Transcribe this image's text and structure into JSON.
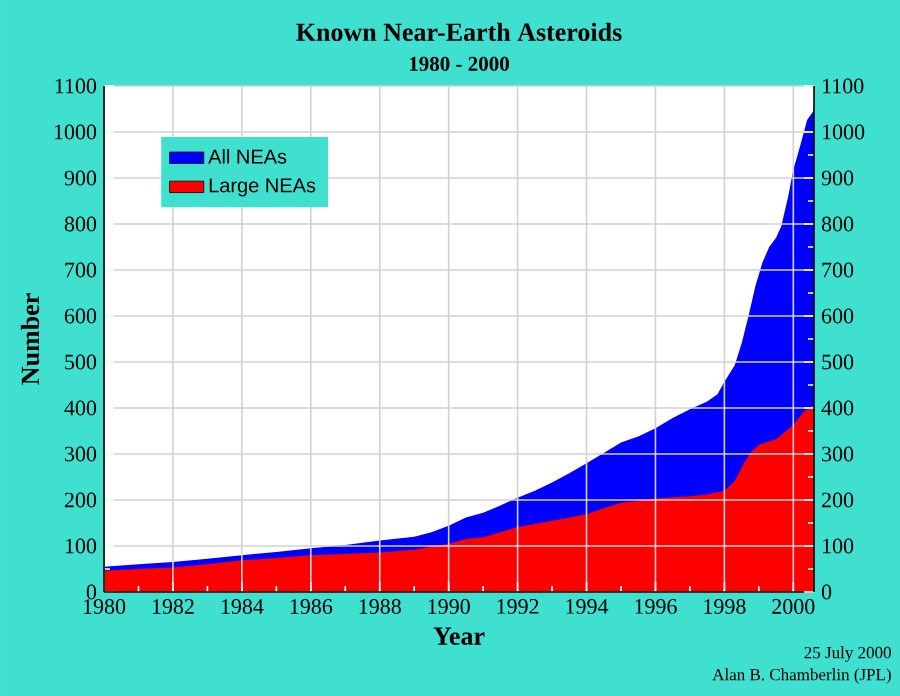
{
  "chart_data": {
    "type": "area",
    "title": "Known Near-Earth Asteroids",
    "subtitle": "1980 - 2000",
    "xlabel": "Year",
    "ylabel": "Number",
    "xlim": [
      1980,
      2000.6
    ],
    "xticks": [
      1980,
      1982,
      1984,
      1986,
      1988,
      1990,
      1992,
      1994,
      1996,
      1998,
      2000
    ],
    "ylim": [
      0,
      1100
    ],
    "yticks": [
      0,
      100,
      200,
      300,
      400,
      500,
      600,
      700,
      800,
      900,
      1000,
      1100
    ],
    "y2lim": [
      0,
      1100
    ],
    "y2ticks": [
      0,
      100,
      200,
      300,
      400,
      500,
      600,
      700,
      800,
      900,
      1000,
      1100
    ],
    "grid": true,
    "legend": "top left",
    "series": [
      {
        "name": "All NEAs",
        "color": "#0000ff",
        "x": [
          1980,
          1981,
          1982,
          1983,
          1984,
          1985,
          1986,
          1987,
          1988,
          1989,
          1989.5,
          1990,
          1990.5,
          1991,
          1991.5,
          1992,
          1992.5,
          1993,
          1993.5,
          1994,
          1994.5,
          1995,
          1995.5,
          1996,
          1996.5,
          1997,
          1997.5,
          1997.8,
          1998,
          1998.3,
          1998.5,
          1998.7,
          1998.9,
          1999.1,
          1999.3,
          1999.5,
          1999.65,
          1999.85,
          2000,
          2000.2,
          2000.4,
          2000.6
        ],
        "values": [
          55,
          60,
          65,
          72,
          80,
          87,
          95,
          102,
          112,
          120,
          130,
          144,
          162,
          172,
          188,
          205,
          220,
          238,
          258,
          280,
          302,
          325,
          338,
          356,
          378,
          397,
          414,
          430,
          457,
          493,
          540,
          600,
          665,
          715,
          750,
          770,
          795,
          859,
          918,
          970,
          1026,
          1047
        ]
      },
      {
        "name": "Large NEAs",
        "color": "#ff0000",
        "x": [
          1980,
          1981,
          1982,
          1983,
          1984,
          1985,
          1986,
          1987,
          1988,
          1989,
          1990,
          1990.5,
          1991,
          1991.5,
          1992,
          1992.5,
          1993,
          1993.5,
          1994,
          1994.5,
          1995,
          1995.5,
          1996,
          1996.5,
          1997,
          1997.5,
          1998,
          1998.3,
          1998.6,
          1998.8,
          1999,
          1999.5,
          2000,
          2000.3,
          2000.6
        ],
        "values": [
          46,
          50,
          53,
          60,
          69,
          74,
          80,
          83,
          86,
          92,
          105,
          115,
          119,
          130,
          141,
          148,
          155,
          162,
          169,
          182,
          194,
          198,
          203,
          206,
          208,
          212,
          220,
          241,
          284,
          306,
          320,
          332,
          363,
          392,
          406
        ]
      }
    ],
    "annotations": [
      "25 July 2000",
      "Alan B. Chamberlin (JPL)"
    ]
  }
}
